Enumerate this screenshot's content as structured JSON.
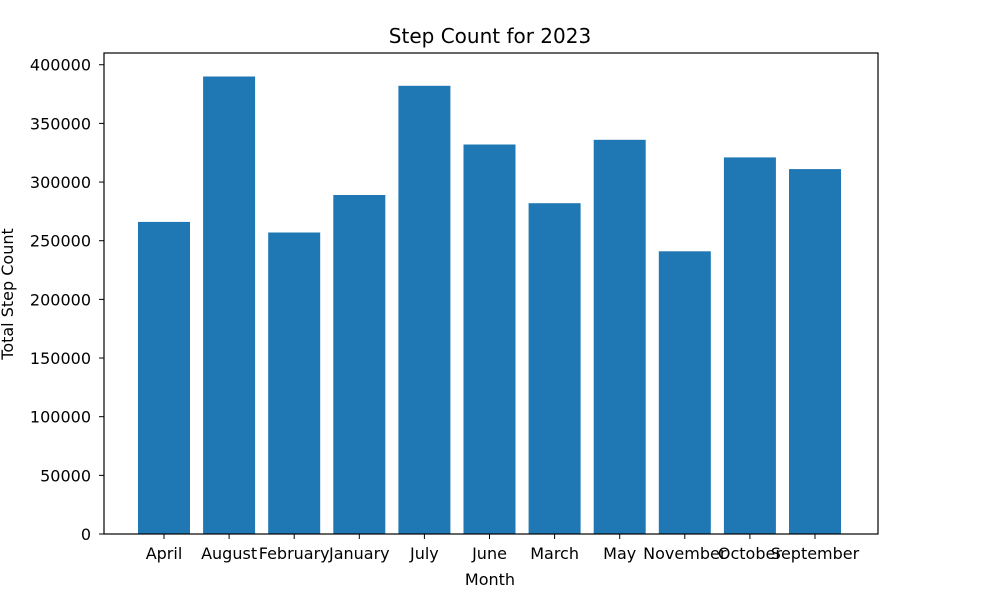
{
  "chart_data": {
    "type": "bar",
    "title": "Step Count for 2023",
    "xlabel": "Month",
    "ylabel": "Total Step Count",
    "categories": [
      "April",
      "August",
      "February",
      "January",
      "July",
      "June",
      "March",
      "May",
      "November",
      "October",
      "September"
    ],
    "values": [
      266000,
      390000,
      257000,
      289000,
      382000,
      332000,
      282000,
      336000,
      241000,
      321000,
      311000
    ],
    "ylim": [
      0,
      410000
    ],
    "yticks": [
      0,
      50000,
      100000,
      150000,
      200000,
      250000,
      300000,
      350000,
      400000
    ],
    "grid": false,
    "bar_color": "#1f77b4"
  }
}
